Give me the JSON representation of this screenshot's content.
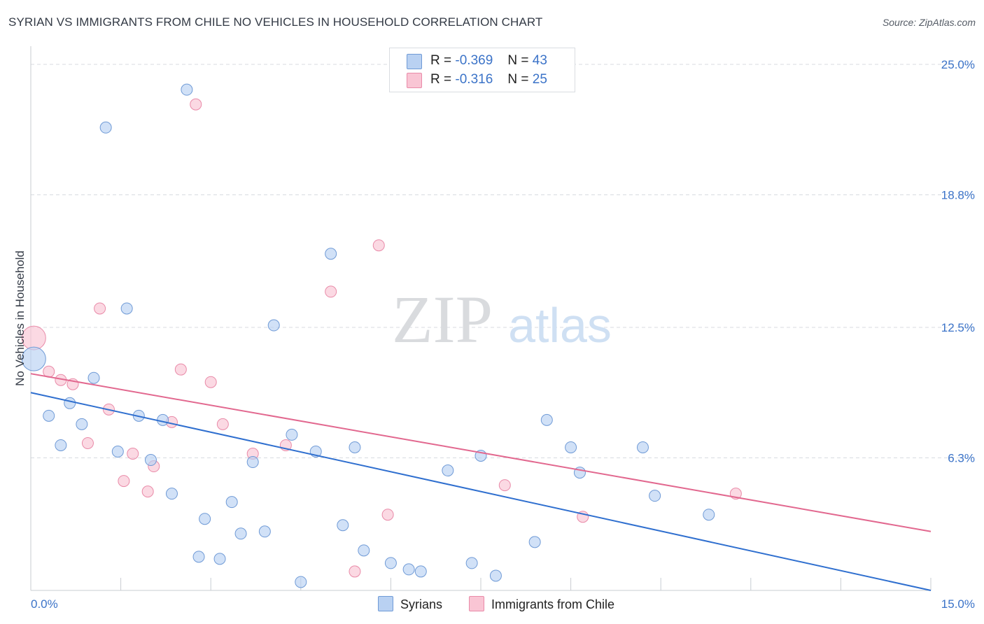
{
  "header": {
    "title": "SYRIAN VS IMMIGRANTS FROM CHILE NO VEHICLES IN HOUSEHOLD CORRELATION CHART",
    "source": "Source: ZipAtlas.com"
  },
  "watermark": {
    "zip": "ZIP",
    "atlas": "atlas"
  },
  "stats_legend": {
    "rows": [
      {
        "r_label": "R =",
        "r_value": "-0.369",
        "n_label": "N =",
        "n_value": "43",
        "color": "#b9d1f2"
      },
      {
        "r_label": "R =",
        "r_value": "-0.316",
        "n_label": "N =",
        "n_value": "25",
        "color": "#f9c5d4"
      }
    ]
  },
  "bottom_legend": {
    "items": [
      {
        "label": "Syrians",
        "color": "#b9d1f2"
      },
      {
        "label": "Immigrants from Chile",
        "color": "#f9c5d4"
      }
    ]
  },
  "colors": {
    "syrians_fill": "#b9d1f2",
    "syrians_stroke": "#6f9ad6",
    "syrians_line": "#2f6fcf",
    "chile_fill": "#f9c5d4",
    "chile_stroke": "#e98aa8",
    "chile_line": "#e2688f",
    "grid": "#d8dbe0",
    "tick_label": "#3b73c8"
  },
  "chart_data": {
    "type": "scatter",
    "title": "SYRIAN VS IMMIGRANTS FROM CHILE NO VEHICLES IN HOUSEHOLD CORRELATION CHART",
    "xlabel": "",
    "ylabel": "No Vehicles in Household",
    "xlim": [
      0,
      15
    ],
    "ylim": [
      0,
      25.6
    ],
    "x_tick_labels": [
      "0.0%",
      "15.0%"
    ],
    "y_ticks": [
      6.3,
      12.5,
      18.8,
      25.0
    ],
    "y_tick_labels": [
      "6.3%",
      "12.5%",
      "18.8%",
      "25.0%"
    ],
    "grid": true,
    "legend_placement": "top-center",
    "series": [
      {
        "name": "Syrians",
        "trend": {
          "x": [
            0,
            15
          ],
          "y": [
            9.4,
            0
          ]
        },
        "points": [
          {
            "x": 0.05,
            "y": 11.0,
            "big": true
          },
          {
            "x": 2.6,
            "y": 23.8
          },
          {
            "x": 1.25,
            "y": 22.0
          },
          {
            "x": 5.0,
            "y": 16.0
          },
          {
            "x": 1.6,
            "y": 13.4
          },
          {
            "x": 4.05,
            "y": 12.6
          },
          {
            "x": 1.05,
            "y": 10.1
          },
          {
            "x": 0.65,
            "y": 8.9
          },
          {
            "x": 0.3,
            "y": 8.3
          },
          {
            "x": 0.85,
            "y": 7.9
          },
          {
            "x": 1.8,
            "y": 8.3
          },
          {
            "x": 2.2,
            "y": 8.1
          },
          {
            "x": 0.5,
            "y": 6.9
          },
          {
            "x": 1.45,
            "y": 6.6
          },
          {
            "x": 2.0,
            "y": 6.2
          },
          {
            "x": 3.7,
            "y": 6.1
          },
          {
            "x": 4.35,
            "y": 7.4
          },
          {
            "x": 4.75,
            "y": 6.6
          },
          {
            "x": 5.4,
            "y": 6.8
          },
          {
            "x": 7.5,
            "y": 6.4
          },
          {
            "x": 8.6,
            "y": 8.1
          },
          {
            "x": 9.0,
            "y": 6.8
          },
          {
            "x": 10.2,
            "y": 6.8
          },
          {
            "x": 6.95,
            "y": 5.7
          },
          {
            "x": 9.15,
            "y": 5.6
          },
          {
            "x": 2.35,
            "y": 4.6
          },
          {
            "x": 3.35,
            "y": 4.2
          },
          {
            "x": 10.4,
            "y": 4.5
          },
          {
            "x": 11.3,
            "y": 3.6
          },
          {
            "x": 2.9,
            "y": 3.4
          },
          {
            "x": 5.2,
            "y": 3.1
          },
          {
            "x": 3.9,
            "y": 2.8
          },
          {
            "x": 3.5,
            "y": 2.7
          },
          {
            "x": 8.4,
            "y": 2.3
          },
          {
            "x": 5.55,
            "y": 1.9
          },
          {
            "x": 2.8,
            "y": 1.6
          },
          {
            "x": 3.15,
            "y": 1.5
          },
          {
            "x": 6.0,
            "y": 1.3
          },
          {
            "x": 7.35,
            "y": 1.3
          },
          {
            "x": 6.3,
            "y": 1.0
          },
          {
            "x": 6.5,
            "y": 0.9
          },
          {
            "x": 7.75,
            "y": 0.7
          },
          {
            "x": 4.5,
            "y": 0.4
          }
        ]
      },
      {
        "name": "Immigrants from Chile",
        "trend": {
          "x": [
            0,
            15
          ],
          "y": [
            10.3,
            2.8
          ]
        },
        "points": [
          {
            "x": 0.05,
            "y": 12.0,
            "big": true
          },
          {
            "x": 2.75,
            "y": 23.1
          },
          {
            "x": 5.8,
            "y": 16.4
          },
          {
            "x": 5.0,
            "y": 14.2
          },
          {
            "x": 1.15,
            "y": 13.4
          },
          {
            "x": 2.5,
            "y": 10.5
          },
          {
            "x": 0.3,
            "y": 10.4
          },
          {
            "x": 0.5,
            "y": 10.0
          },
          {
            "x": 0.7,
            "y": 9.8
          },
          {
            "x": 3.0,
            "y": 9.9
          },
          {
            "x": 1.3,
            "y": 8.6
          },
          {
            "x": 2.35,
            "y": 8.0
          },
          {
            "x": 3.2,
            "y": 7.9
          },
          {
            "x": 0.95,
            "y": 7.0
          },
          {
            "x": 4.25,
            "y": 6.9
          },
          {
            "x": 1.7,
            "y": 6.5
          },
          {
            "x": 3.7,
            "y": 6.5
          },
          {
            "x": 2.05,
            "y": 5.9
          },
          {
            "x": 1.55,
            "y": 5.2
          },
          {
            "x": 1.95,
            "y": 4.7
          },
          {
            "x": 7.9,
            "y": 5.0
          },
          {
            "x": 11.75,
            "y": 4.6
          },
          {
            "x": 5.95,
            "y": 3.6
          },
          {
            "x": 9.2,
            "y": 3.5
          },
          {
            "x": 5.4,
            "y": 0.9
          }
        ]
      }
    ]
  }
}
